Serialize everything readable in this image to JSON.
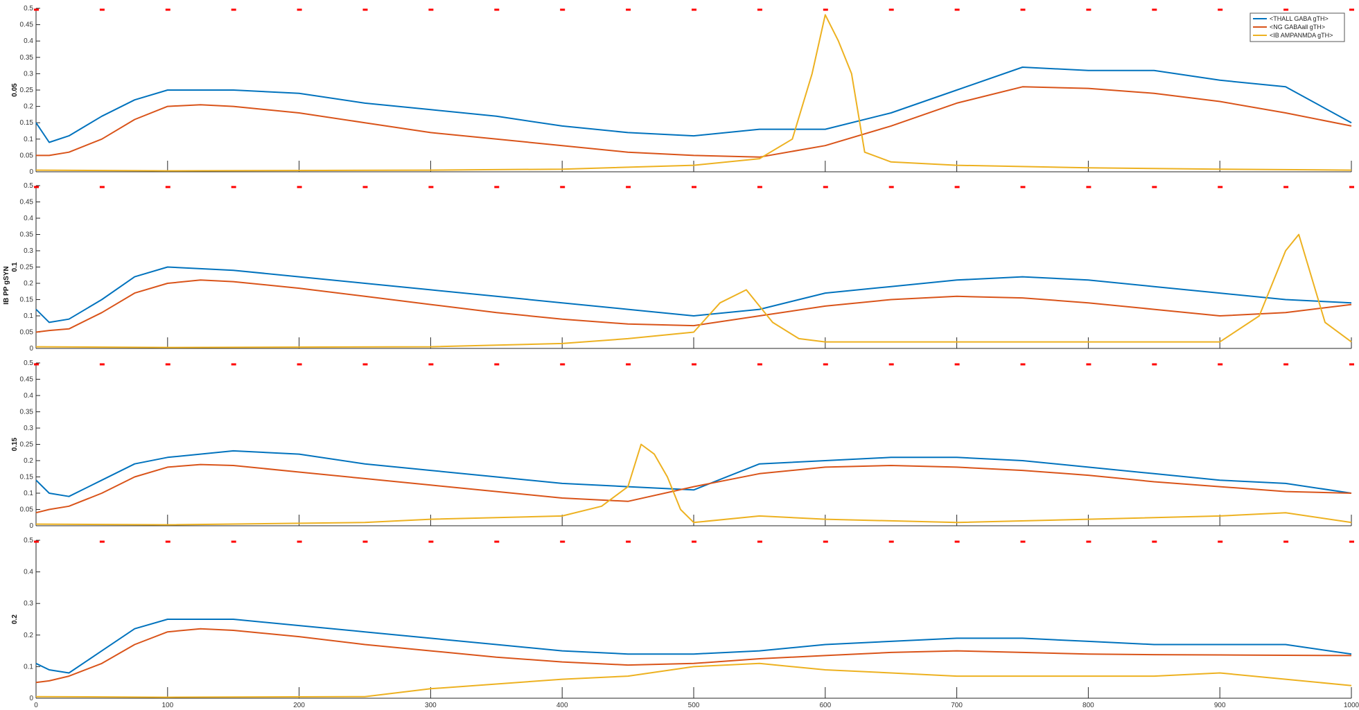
{
  "figure": {
    "ylabel": "IB PP gSYN",
    "legend": [
      "<THALL GABA gTH>",
      "<NG GABAall gTH>",
      "<IB AMPANMDA gTH>"
    ],
    "colors": {
      "thall": "#0072BD",
      "ng": "#D95319",
      "ib": "#EDB120",
      "marker": "#FF0000"
    }
  },
  "chart_data": [
    {
      "type": "line",
      "panel_label": "0.05",
      "xlim": [
        0,
        1000
      ],
      "ylim": [
        0,
        0.5
      ],
      "yticks": [
        "0",
        "0.05",
        "0.1",
        "0.15",
        "0.2",
        "0.25",
        "0.3",
        "0.35",
        "0.4",
        "0.45",
        "0.5"
      ],
      "xticks": [],
      "series": [
        {
          "name": "<THALL GABA gTH>",
          "x": [
            0,
            10,
            25,
            50,
            75,
            100,
            150,
            200,
            250,
            300,
            350,
            400,
            450,
            500,
            550,
            600,
            650,
            700,
            750,
            800,
            850,
            900,
            950,
            1000
          ],
          "y": [
            0.15,
            0.09,
            0.11,
            0.17,
            0.22,
            0.25,
            0.25,
            0.24,
            0.21,
            0.19,
            0.17,
            0.14,
            0.12,
            0.11,
            0.13,
            0.13,
            0.18,
            0.25,
            0.32,
            0.31,
            0.31,
            0.28,
            0.26,
            0.15
          ]
        },
        {
          "name": "<NG GABAall gTH>",
          "x": [
            0,
            10,
            25,
            50,
            75,
            100,
            125,
            150,
            200,
            250,
            300,
            350,
            400,
            450,
            500,
            550,
            600,
            650,
            700,
            750,
            800,
            850,
            900,
            950,
            1000
          ],
          "y": [
            0.05,
            0.05,
            0.06,
            0.1,
            0.16,
            0.2,
            0.205,
            0.2,
            0.18,
            0.15,
            0.12,
            0.1,
            0.08,
            0.06,
            0.05,
            0.045,
            0.08,
            0.14,
            0.21,
            0.26,
            0.255,
            0.24,
            0.215,
            0.18,
            0.14
          ]
        },
        {
          "name": "<IB AMPANMDA gTH>",
          "x": [
            0,
            100,
            300,
            400,
            500,
            550,
            575,
            590,
            600,
            610,
            620,
            630,
            650,
            700,
            800,
            900,
            1000
          ],
          "y": [
            0.005,
            0.003,
            0.005,
            0.008,
            0.02,
            0.04,
            0.1,
            0.3,
            0.48,
            0.4,
            0.3,
            0.06,
            0.03,
            0.02,
            0.012,
            0.008,
            0.005
          ]
        }
      ]
    },
    {
      "type": "line",
      "panel_label": "0.1",
      "xlim": [
        0,
        1000
      ],
      "ylim": [
        0,
        0.5
      ],
      "yticks": [
        "0",
        "0.05",
        "0.1",
        "0.15",
        "0.2",
        "0.25",
        "0.3",
        "0.35",
        "0.4",
        "0.45",
        "0.5"
      ],
      "xticks": [],
      "series": [
        {
          "name": "<THALL GABA gTH>",
          "x": [
            0,
            10,
            25,
            50,
            75,
            100,
            150,
            200,
            250,
            300,
            350,
            400,
            450,
            500,
            550,
            600,
            650,
            700,
            750,
            800,
            850,
            900,
            950,
            1000
          ],
          "y": [
            0.12,
            0.08,
            0.09,
            0.15,
            0.22,
            0.25,
            0.24,
            0.22,
            0.2,
            0.18,
            0.16,
            0.14,
            0.12,
            0.1,
            0.12,
            0.17,
            0.19,
            0.21,
            0.22,
            0.21,
            0.19,
            0.17,
            0.15,
            0.14
          ]
        },
        {
          "name": "<NG GABAall gTH>",
          "x": [
            0,
            10,
            25,
            50,
            75,
            100,
            125,
            150,
            200,
            250,
            300,
            350,
            400,
            450,
            500,
            550,
            600,
            650,
            700,
            750,
            800,
            850,
            900,
            950,
            1000
          ],
          "y": [
            0.05,
            0.055,
            0.06,
            0.11,
            0.17,
            0.2,
            0.21,
            0.205,
            0.185,
            0.16,
            0.135,
            0.11,
            0.09,
            0.075,
            0.07,
            0.1,
            0.13,
            0.15,
            0.16,
            0.155,
            0.14,
            0.12,
            0.1,
            0.11,
            0.135
          ]
        },
        {
          "name": "<IB AMPANMDA gTH>",
          "x": [
            0,
            100,
            300,
            400,
            450,
            500,
            520,
            540,
            560,
            580,
            600,
            700,
            800,
            900,
            930,
            950,
            960,
            980,
            1000
          ],
          "y": [
            0.005,
            0.003,
            0.005,
            0.015,
            0.03,
            0.05,
            0.14,
            0.18,
            0.08,
            0.03,
            0.02,
            0.02,
            0.02,
            0.02,
            0.1,
            0.3,
            0.35,
            0.08,
            0.02
          ]
        }
      ]
    },
    {
      "type": "line",
      "panel_label": "0.15",
      "xlim": [
        0,
        1000
      ],
      "ylim": [
        0,
        0.5
      ],
      "yticks": [
        "0",
        "0.05",
        "0.1",
        "0.15",
        "0.2",
        "0.25",
        "0.3",
        "0.35",
        "0.4",
        "0.45",
        "0.5"
      ],
      "xticks": [],
      "series": [
        {
          "name": "<THALL GABA gTH>",
          "x": [
            0,
            10,
            25,
            50,
            75,
            100,
            150,
            200,
            250,
            300,
            350,
            400,
            450,
            500,
            550,
            600,
            650,
            700,
            750,
            800,
            850,
            900,
            950,
            1000
          ],
          "y": [
            0.14,
            0.1,
            0.09,
            0.14,
            0.19,
            0.21,
            0.23,
            0.22,
            0.19,
            0.17,
            0.15,
            0.13,
            0.12,
            0.11,
            0.19,
            0.2,
            0.21,
            0.21,
            0.2,
            0.18,
            0.16,
            0.14,
            0.13,
            0.1
          ]
        },
        {
          "name": "<NG GABAall gTH>",
          "x": [
            0,
            10,
            25,
            50,
            75,
            100,
            125,
            150,
            200,
            250,
            300,
            350,
            400,
            450,
            500,
            550,
            600,
            650,
            700,
            750,
            800,
            850,
            900,
            950,
            1000
          ],
          "y": [
            0.04,
            0.05,
            0.06,
            0.1,
            0.15,
            0.18,
            0.188,
            0.185,
            0.165,
            0.145,
            0.125,
            0.105,
            0.085,
            0.075,
            0.12,
            0.16,
            0.18,
            0.185,
            0.18,
            0.17,
            0.155,
            0.135,
            0.12,
            0.105,
            0.1
          ]
        },
        {
          "name": "<IB AMPANMDA gTH>",
          "x": [
            0,
            100,
            250,
            300,
            400,
            430,
            450,
            460,
            470,
            480,
            490,
            500,
            550,
            600,
            700,
            800,
            900,
            950,
            1000
          ],
          "y": [
            0.005,
            0.003,
            0.01,
            0.02,
            0.03,
            0.06,
            0.12,
            0.25,
            0.22,
            0.15,
            0.05,
            0.01,
            0.03,
            0.02,
            0.01,
            0.02,
            0.03,
            0.04,
            0.01
          ]
        }
      ]
    },
    {
      "type": "line",
      "panel_label": "0.2",
      "xlim": [
        0,
        1000
      ],
      "ylim": [
        0,
        0.5
      ],
      "yticks": [
        "0",
        "0.1",
        "0.2",
        "0.3",
        "0.4",
        "0.5"
      ],
      "xticks": [
        "0",
        "100",
        "200",
        "300",
        "400",
        "500",
        "600",
        "700",
        "800",
        "900",
        "1000"
      ],
      "series": [
        {
          "name": "<THALL GABA gTH>",
          "x": [
            0,
            10,
            25,
            50,
            75,
            100,
            150,
            200,
            250,
            300,
            350,
            400,
            450,
            500,
            550,
            600,
            650,
            700,
            750,
            800,
            850,
            900,
            950,
            1000
          ],
          "y": [
            0.11,
            0.09,
            0.08,
            0.15,
            0.22,
            0.25,
            0.25,
            0.23,
            0.21,
            0.19,
            0.17,
            0.15,
            0.14,
            0.14,
            0.15,
            0.17,
            0.18,
            0.19,
            0.19,
            0.18,
            0.17,
            0.17,
            0.17,
            0.14
          ]
        },
        {
          "name": "<NG GABAall gTH>",
          "x": [
            0,
            10,
            25,
            50,
            75,
            100,
            125,
            150,
            200,
            250,
            300,
            350,
            400,
            450,
            500,
            550,
            600,
            650,
            700,
            750,
            800,
            850,
            900,
            950,
            1000
          ],
          "y": [
            0.05,
            0.055,
            0.07,
            0.11,
            0.17,
            0.21,
            0.22,
            0.215,
            0.195,
            0.17,
            0.15,
            0.13,
            0.115,
            0.105,
            0.11,
            0.125,
            0.135,
            0.145,
            0.15,
            0.145,
            0.14,
            0.138,
            0.137,
            0.136,
            0.135
          ]
        },
        {
          "name": "<IB AMPANMDA gTH>",
          "x": [
            0,
            100,
            250,
            300,
            400,
            450,
            500,
            550,
            600,
            650,
            700,
            750,
            800,
            850,
            900,
            950,
            1000
          ],
          "y": [
            0.005,
            0.003,
            0.005,
            0.03,
            0.06,
            0.07,
            0.1,
            0.11,
            0.09,
            0.08,
            0.07,
            0.07,
            0.07,
            0.07,
            0.08,
            0.06,
            0.04
          ]
        }
      ]
    }
  ]
}
